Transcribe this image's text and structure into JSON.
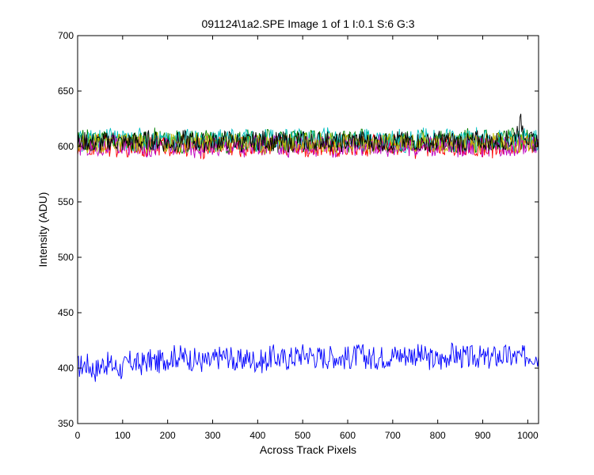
{
  "chart_data": {
    "type": "line",
    "title": "091124\\1a2.SPE  Image 1 of 1  I:0.1  S:6  G:3",
    "xlabel": "Across Track Pixels",
    "ylabel": "Intensity (ADU)",
    "xlim": [
      0,
      1024
    ],
    "ylim": [
      350,
      700
    ],
    "xticks": [
      0,
      100,
      200,
      300,
      400,
      500,
      600,
      700,
      800,
      900,
      1000
    ],
    "yticks": [
      350,
      400,
      450,
      500,
      550,
      600,
      650,
      700
    ],
    "grid": false,
    "legend": "none",
    "series": [
      {
        "color": "#0000ff",
        "values": [
          401,
          404,
          398,
          405,
          402,
          399,
          406,
          403,
          407,
          405,
          409,
          411,
          410,
          408,
          406,
          405,
          410,
          411,
          405,
          409,
          407,
          406,
          411,
          408,
          409,
          412,
          413,
          410,
          410,
          411,
          409,
          410,
          412,
          408,
          410,
          411,
          412,
          412,
          413,
          410,
          408,
          407,
          413,
          411,
          409,
          411,
          408,
          410,
          411,
          410,
          409,
          413,
          411
        ]
      },
      {
        "color": "#ff0000",
        "values": [
          600,
          598,
          601,
          602,
          599,
          601,
          600,
          603,
          598,
          600,
          602,
          599,
          601,
          600,
          598,
          602,
          603,
          601,
          600,
          599,
          602,
          601,
          598,
          600,
          603,
          602,
          599,
          601,
          600,
          598,
          602,
          600,
          601,
          599,
          603,
          600,
          601,
          602,
          598,
          600,
          601,
          603,
          599,
          600,
          602,
          601,
          600,
          598,
          602,
          601,
          603,
          600,
          599
        ]
      },
      {
        "color": "#008000",
        "values": [
          604,
          606,
          603,
          605,
          607,
          604,
          605,
          603,
          606,
          608,
          604,
          605,
          603,
          606,
          605,
          607,
          604,
          603,
          605,
          606,
          604,
          607,
          605,
          603,
          606,
          605,
          604,
          607,
          606,
          603,
          605,
          604,
          606,
          607,
          605,
          603,
          604,
          606,
          605,
          607,
          604,
          606,
          605,
          603,
          607,
          604,
          606,
          605,
          604,
          607,
          606,
          605,
          604
        ]
      },
      {
        "color": "#00bfbf",
        "values": [
          606,
          604,
          607,
          605,
          608,
          606,
          604,
          607,
          605,
          606,
          608,
          604,
          606,
          607,
          605,
          604,
          608,
          606,
          605,
          607,
          604,
          606,
          608,
          605,
          607,
          606,
          604,
          605,
          608,
          607,
          605,
          606,
          604,
          608,
          606,
          605,
          607,
          604,
          606,
          608,
          605,
          607,
          606,
          604,
          605,
          608,
          606,
          607,
          605,
          604,
          606,
          607,
          605
        ]
      },
      {
        "color": "#bf00bf",
        "values": [
          599,
          601,
          598,
          600,
          602,
          599,
          600,
          601,
          598,
          602,
          600,
          599,
          601,
          598,
          600,
          602,
          599,
          601,
          600,
          598,
          601,
          599,
          602,
          600,
          598,
          601,
          600,
          599,
          602,
          598,
          600,
          601,
          599,
          600,
          602,
          598,
          601,
          600,
          599,
          602,
          600,
          598,
          601,
          599,
          600,
          602,
          598,
          601,
          600,
          599,
          602,
          600,
          601
        ]
      },
      {
        "color": "#bfbf00",
        "values": [
          603,
          602,
          604,
          603,
          605,
          602,
          604,
          603,
          602,
          605,
          603,
          604,
          602,
          603,
          605,
          604,
          602,
          603,
          604,
          605,
          603,
          602,
          604,
          605,
          603,
          602,
          604,
          603,
          605,
          602,
          603,
          604,
          605,
          602,
          603,
          604,
          602,
          605,
          603,
          604,
          602,
          603,
          605,
          604,
          603,
          602,
          604,
          605,
          603,
          602,
          604,
          603,
          605
        ]
      },
      {
        "color": "#000000",
        "values": [
          602,
          605,
          603,
          604,
          606,
          603,
          605,
          604,
          606,
          605,
          603,
          604,
          606,
          605,
          603,
          604,
          605,
          606,
          604,
          603,
          605,
          606,
          604,
          605,
          603,
          606,
          604,
          605,
          606,
          603,
          604,
          605,
          606,
          604,
          605,
          603,
          606,
          604,
          605,
          603,
          604,
          606,
          605,
          604,
          603,
          606,
          605,
          604,
          606,
          605,
          621,
          604,
          605
        ]
      }
    ]
  }
}
